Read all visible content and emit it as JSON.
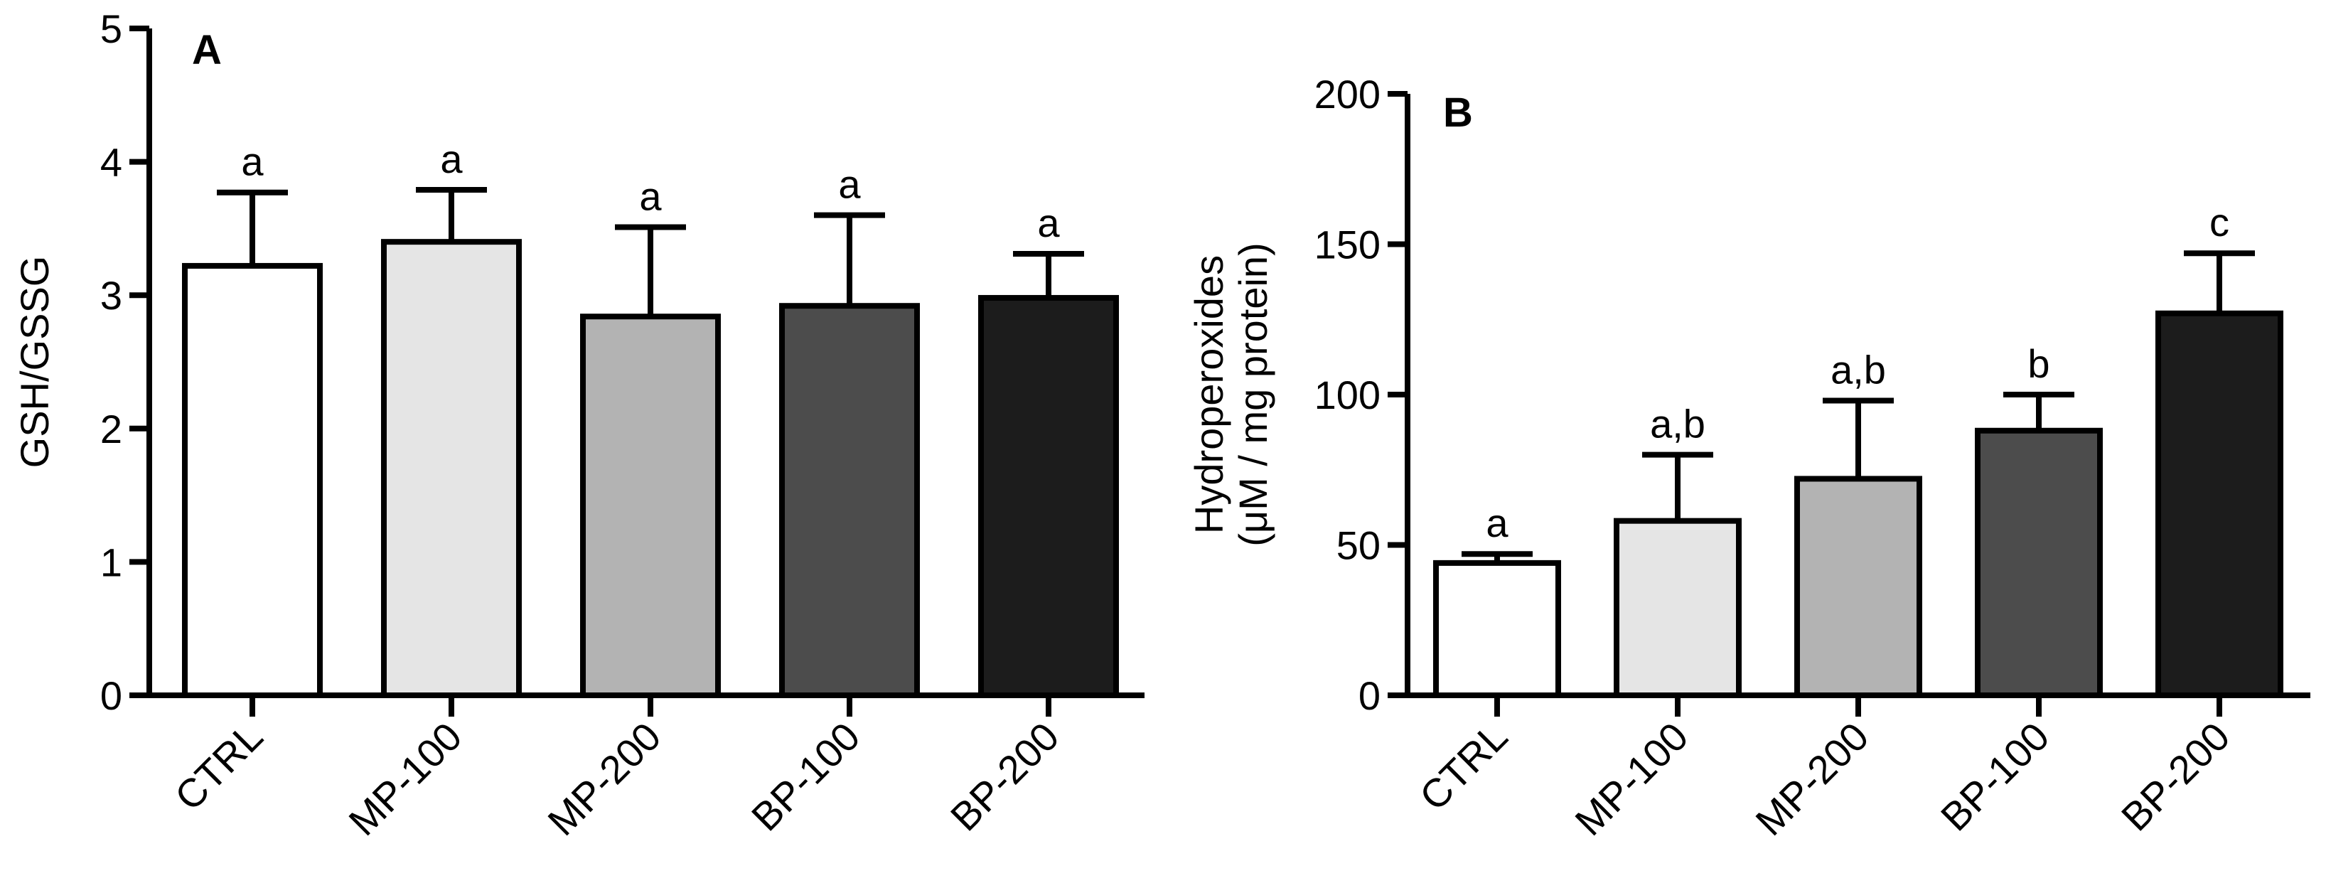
{
  "chart_data": [
    {
      "type": "bar",
      "panel": "A",
      "categories": [
        "CTRL",
        "MP-100",
        "MP-200",
        "BP-100",
        "BP-200"
      ],
      "values": [
        3.22,
        3.4,
        2.84,
        2.92,
        2.98
      ],
      "errors": [
        0.55,
        0.39,
        0.67,
        0.68,
        0.33
      ],
      "significance": [
        "a",
        "a",
        "a",
        "a",
        "a"
      ],
      "colors": [
        "#ffffff",
        "#e5e5e5",
        "#b3b3b3",
        "#4c4c4c",
        "#1c1c1c"
      ],
      "ylabel_lines": [
        "GSH/GSSG"
      ],
      "ylim": [
        0,
        5
      ],
      "yticks": [
        0,
        1,
        2,
        3,
        4,
        5
      ],
      "ytick_labels": [
        "0",
        "1",
        "2",
        "3",
        "4",
        "5"
      ],
      "grid": false
    },
    {
      "type": "bar",
      "panel": "B",
      "categories": [
        "CTRL",
        "MP-100",
        "MP-200",
        "BP-100",
        "BP-200"
      ],
      "values": [
        44,
        58,
        72,
        88,
        127
      ],
      "errors": [
        3,
        22,
        26,
        12,
        20
      ],
      "significance": [
        "a",
        "a,b",
        "a,b",
        "b",
        "c"
      ],
      "colors": [
        "#ffffff",
        "#e5e5e5",
        "#b3b3b3",
        "#4c4c4c",
        "#1c1c1c"
      ],
      "ylabel_lines": [
        "Hydroperoxides",
        "(μM / mg protein)"
      ],
      "ylim": [
        0,
        200
      ],
      "yticks": [
        0,
        50,
        100,
        150,
        200
      ],
      "ytick_labels": [
        "0",
        "50",
        "100",
        "150",
        "200"
      ],
      "grid": false
    }
  ]
}
